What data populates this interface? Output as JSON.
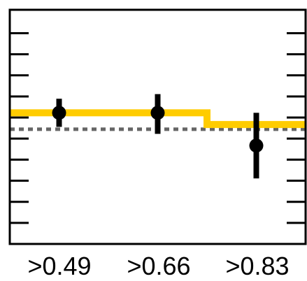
{
  "chart_data": {
    "type": "scatter",
    "categories": [
      ">0.49",
      ">0.66",
      ">0.83"
    ],
    "xlim": [
      0,
      3
    ],
    "ylim": [
      0,
      1
    ],
    "grid": false,
    "legend": "none",
    "reference_line": {
      "value": 0.49,
      "style": "dotted",
      "color": "#666666"
    },
    "series": [
      {
        "kind": "step",
        "color": "#ffcc00",
        "values": [
          0.56,
          0.56,
          0.51
        ]
      },
      {
        "kind": "points-with-error",
        "color": "#000000",
        "values": [
          0.56,
          0.56,
          0.42
        ],
        "err_low": [
          0.06,
          0.09,
          0.14
        ],
        "err_high": [
          0.06,
          0.08,
          0.14
        ]
      }
    ],
    "y_ticks": [
      0.0,
      0.09,
      0.18,
      0.27,
      0.36,
      0.45,
      0.54,
      0.63,
      0.72,
      0.81,
      0.9,
      1.0
    ]
  }
}
